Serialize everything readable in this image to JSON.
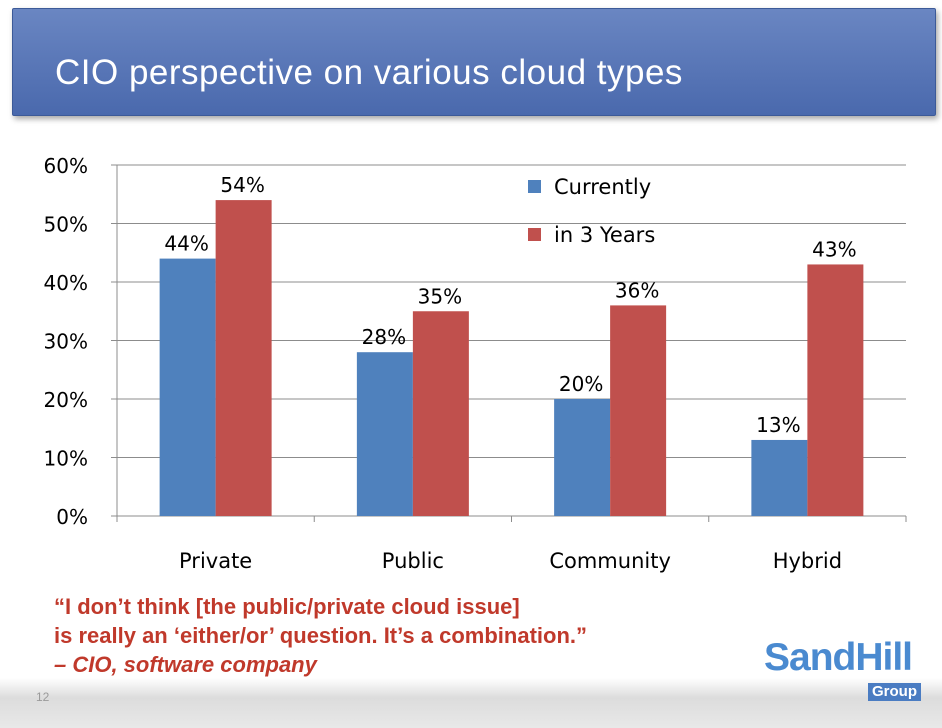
{
  "slide": {
    "title": "CIO perspective on various cloud types",
    "number": "12"
  },
  "quote": {
    "line1": "“I don’t think [the public/private cloud issue]",
    "line2": "is really an ‘either/or’ question. It’s a combination.”",
    "attribution": "– CIO, software company"
  },
  "logo": {
    "main": "SandHill",
    "sub": "Group"
  },
  "colors": {
    "title_bar": "#5876b8",
    "currently": "#4f81bd",
    "in_3_years": "#c0504d",
    "quote": "#c0392b",
    "logo": "#4a8ad0"
  },
  "chart_data": {
    "type": "bar",
    "categories": [
      "Private",
      "Public",
      "Community",
      "Hybrid"
    ],
    "series": [
      {
        "name": "Currently",
        "values": [
          44,
          28,
          20,
          13
        ],
        "labels": [
          "44%",
          "28%",
          "20%",
          "13%"
        ],
        "color": "#4f81bd"
      },
      {
        "name": "in 3 Years",
        "values": [
          54,
          35,
          36,
          43
        ],
        "labels": [
          "54%",
          "35%",
          "36%",
          "43%"
        ],
        "color": "#c0504d"
      }
    ],
    "yticks": [
      "0%",
      "10%",
      "20%",
      "30%",
      "40%",
      "50%",
      "60%"
    ],
    "ylim": [
      0,
      60
    ],
    "grid": true,
    "legend": "top-right",
    "title": "",
    "xlabel": "",
    "ylabel": ""
  }
}
